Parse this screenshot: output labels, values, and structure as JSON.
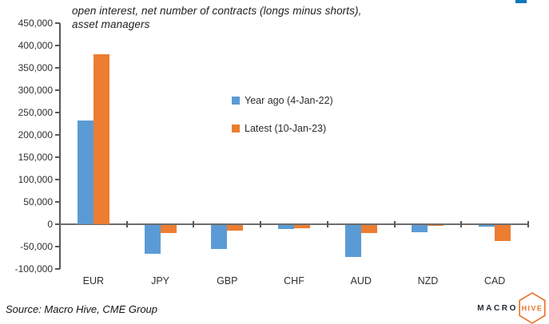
{
  "title": {
    "line1": "open interest, net number of contracts (longs minus shorts),",
    "line2": "asset managers"
  },
  "chart_data": {
    "type": "bar",
    "categories": [
      "EUR",
      "JPY",
      "GBP",
      "CHF",
      "AUD",
      "NZD",
      "CAD"
    ],
    "series": [
      {
        "name": "Year ago (4-Jan-22)",
        "color": "#5B9BD5",
        "values": [
          232000,
          -65000,
          -53000,
          -9000,
          -72000,
          -16000,
          -3000
        ]
      },
      {
        "name": "Latest (10-Jan-23)",
        "color": "#ED7D31",
        "values": [
          381000,
          -18000,
          -13000,
          -8000,
          -17000,
          -2000,
          -36000
        ]
      }
    ],
    "title": "open interest, net number of contracts (longs minus shorts), asset managers",
    "xlabel": "",
    "ylabel": "",
    "ylim": [
      -100000,
      450000
    ],
    "ytick_step": 50000,
    "ytick_format": "thousands-comma",
    "legend_position": "center-right",
    "grid": false
  },
  "source": {
    "text": "Source: Macro Hive, CME Group"
  },
  "logo": {
    "macro": "MACRO",
    "hive": "HIVE"
  },
  "colors": {
    "axis": "#595959",
    "blue": "#5B9BD5",
    "orange": "#ED7D31",
    "logo_orange": "#E8762C",
    "top_right_mark": "#0b76c0"
  }
}
